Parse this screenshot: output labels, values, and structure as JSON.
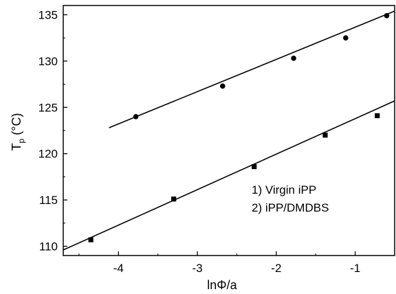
{
  "chart_data": {
    "type": "scatter",
    "xlabel": "lnΦ/a",
    "ylabel_main": "T",
    "ylabel_sub": "p",
    "ylabel_tail": " (°C)",
    "xlim": [
      -4.7,
      -0.5
    ],
    "ylim": [
      109,
      136
    ],
    "xticks": [
      -4,
      -3,
      -2,
      -1
    ],
    "xtick_labels": [
      "-4",
      "-3",
      "-2",
      "-1"
    ],
    "yticks": [
      110,
      115,
      120,
      125,
      130,
      135
    ],
    "ytick_labels": [
      "110",
      "115",
      "120",
      "125",
      "130",
      "135"
    ],
    "grid": false,
    "series": [
      {
        "marker": "circle",
        "color": "#000000",
        "points": [
          [
            -3.78,
            124.0
          ],
          [
            -2.68,
            127.3
          ],
          [
            -1.78,
            130.3
          ],
          [
            -1.12,
            132.5
          ],
          [
            -0.6,
            134.9
          ]
        ],
        "fit_line": [
          [
            -4.12,
            122.8
          ],
          [
            -0.5,
            135.4
          ]
        ]
      },
      {
        "marker": "square",
        "color": "#000000",
        "points": [
          [
            -4.35,
            110.7
          ],
          [
            -3.3,
            115.1
          ],
          [
            -2.28,
            118.6
          ],
          [
            -1.38,
            122.0
          ],
          [
            -0.72,
            124.1
          ]
        ],
        "fit_line": [
          [
            -4.7,
            109.6
          ],
          [
            -0.5,
            125.7
          ]
        ]
      }
    ],
    "legend": {
      "position": "lower-right",
      "entries": [
        "1) Virgin iPP",
        "2) iPP/DMDBS"
      ]
    }
  }
}
